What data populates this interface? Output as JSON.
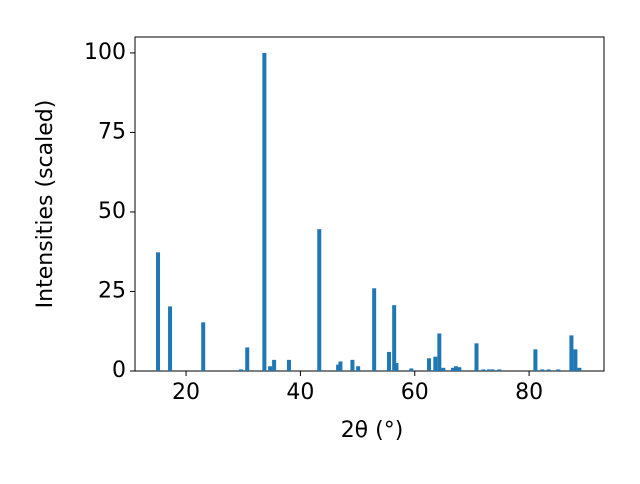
{
  "chart_data": {
    "type": "bar",
    "xlabel": "2θ (°)",
    "ylabel": "Intensities (scaled)",
    "color": "#1f77b4",
    "x": [
      15.1,
      17.2,
      23.0,
      29.6,
      30.7,
      33.7,
      34.7,
      35.4,
      38.0,
      43.3,
      46.6,
      47.0,
      49.1,
      50.1,
      52.9,
      55.5,
      56.4,
      56.8,
      59.4,
      62.5,
      63.6,
      64.3,
      65.0,
      66.7,
      67.2,
      67.8,
      70.8,
      72.0,
      73.0,
      73.6,
      74.8,
      81.1,
      82.3,
      83.4,
      85.1,
      87.4,
      88.1,
      88.8
    ],
    "values": [
      37.3,
      20.3,
      15.3,
      0.5,
      7.4,
      100,
      1.5,
      3.5,
      3.5,
      44.6,
      2,
      3,
      3.5,
      1.5,
      26,
      6,
      20.7,
      2.5,
      0.8,
      4,
      4.5,
      11.8,
      1,
      1,
      1.5,
      1.2,
      8.7,
      0.5,
      0.5,
      0.5,
      0.5,
      6.8,
      0.5,
      0.5,
      0.5,
      11.2,
      6.8,
      1
    ],
    "xlim": [
      11.07,
      93.1
    ],
    "xticks": [
      20,
      40,
      60,
      80
    ],
    "ylim": [
      0,
      105
    ],
    "yticks": [
      0,
      25,
      50,
      75,
      100
    ],
    "grid": false
  }
}
